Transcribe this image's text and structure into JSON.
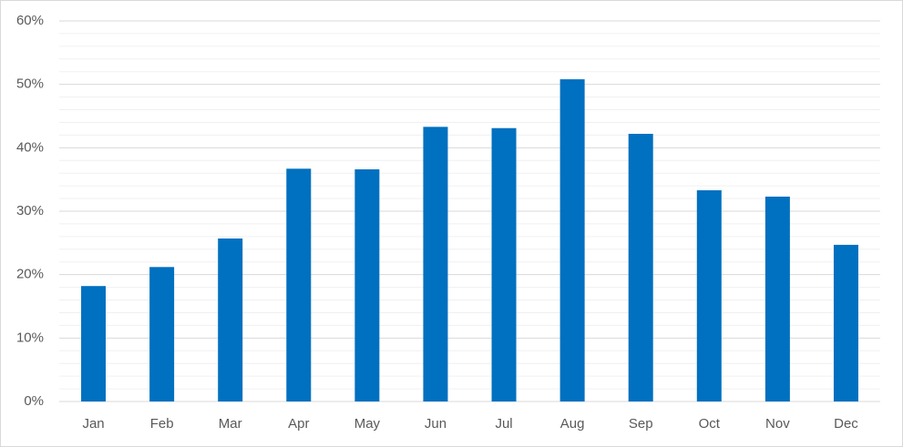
{
  "chart_data": {
    "type": "bar",
    "categories": [
      "Jan",
      "Feb",
      "Mar",
      "Apr",
      "May",
      "Jun",
      "Jul",
      "Aug",
      "Sep",
      "Oct",
      "Nov",
      "Dec"
    ],
    "values": [
      18.2,
      21.2,
      25.7,
      36.7,
      36.6,
      43.3,
      43.1,
      50.8,
      42.2,
      33.3,
      32.3,
      24.7
    ],
    "color": "#0070c0",
    "ylim": [
      0,
      60
    ],
    "yticks": [
      {
        "value": 0,
        "label": "0%"
      },
      {
        "value": 10,
        "label": "10%"
      },
      {
        "value": 20,
        "label": "20%"
      },
      {
        "value": 30,
        "label": "30%"
      },
      {
        "value": 40,
        "label": "40%"
      },
      {
        "value": 50,
        "label": "50%"
      },
      {
        "value": 60,
        "label": "60%"
      }
    ],
    "minor_yticks": [
      2,
      4,
      6,
      8,
      12,
      14,
      16,
      18,
      22,
      24,
      26,
      28,
      32,
      34,
      36,
      38,
      42,
      44,
      46,
      48,
      52,
      54,
      56,
      58
    ],
    "grid": true
  }
}
